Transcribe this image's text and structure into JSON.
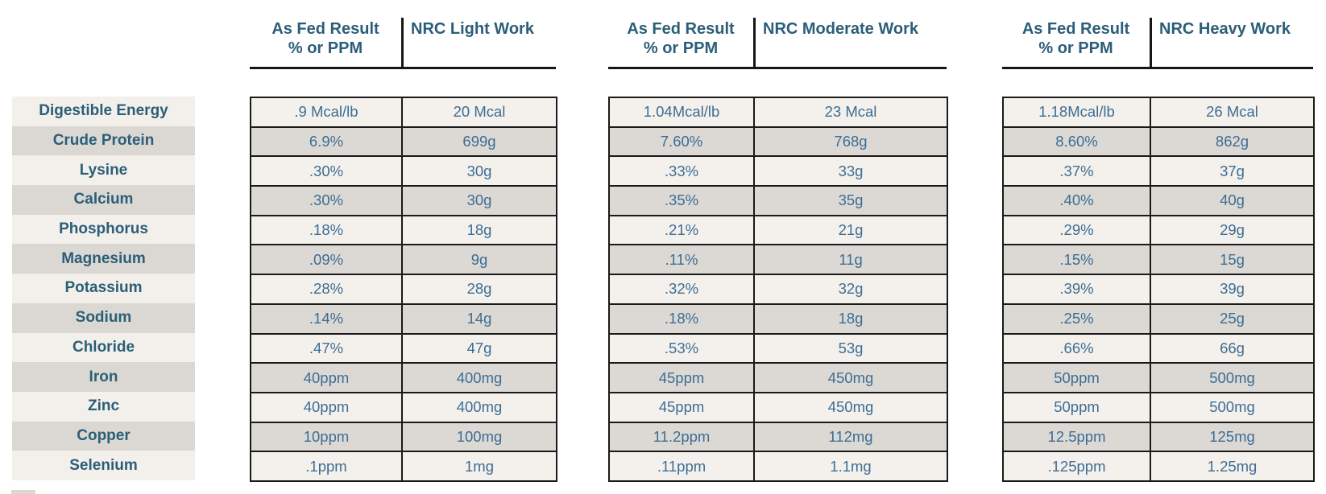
{
  "colors": {
    "heading_text": "#2b5e78",
    "value_text": "#3d6d95",
    "stripe_light": "#f3f0ec",
    "stripe_dark": "#dbd8d3",
    "table_border": "#1a1a1a"
  },
  "row_labels": [
    "Digestible Energy",
    "Crude Protein",
    "Lysine",
    "Calcium",
    "Phosphorus",
    "Magnesium",
    "Potassium",
    "Sodium",
    "Chloride",
    "Iron",
    "Zinc",
    "Copper",
    "Selenium"
  ],
  "groups": [
    {
      "name": "light-work",
      "as_fed_header_line1": "As Fed Result",
      "as_fed_header_line2": "% or PPM",
      "nrc_header": "NRC Light Work",
      "rows": [
        [
          ".9 Mcal/lb",
          "20 Mcal"
        ],
        [
          "6.9%",
          "699g"
        ],
        [
          ".30%",
          "30g"
        ],
        [
          ".30%",
          "30g"
        ],
        [
          ".18%",
          "18g"
        ],
        [
          ".09%",
          "9g"
        ],
        [
          ".28%",
          "28g"
        ],
        [
          ".14%",
          "14g"
        ],
        [
          ".47%",
          "47g"
        ],
        [
          "40ppm",
          "400mg"
        ],
        [
          "40ppm",
          "400mg"
        ],
        [
          "10ppm",
          "100mg"
        ],
        [
          ".1ppm",
          "1mg"
        ]
      ]
    },
    {
      "name": "moderate-work",
      "as_fed_header_line1": "As Fed Result",
      "as_fed_header_line2": "% or PPM",
      "nrc_header": "NRC Moderate Work",
      "rows": [
        [
          "1.04Mcal/lb",
          "23 Mcal"
        ],
        [
          "7.60%",
          "768g"
        ],
        [
          ".33%",
          "33g"
        ],
        [
          ".35%",
          "35g"
        ],
        [
          ".21%",
          "21g"
        ],
        [
          ".11%",
          "11g"
        ],
        [
          ".32%",
          "32g"
        ],
        [
          ".18%",
          "18g"
        ],
        [
          ".53%",
          "53g"
        ],
        [
          "45ppm",
          "450mg"
        ],
        [
          "45ppm",
          "450mg"
        ],
        [
          "11.2ppm",
          "112mg"
        ],
        [
          ".11ppm",
          "1.1mg"
        ]
      ]
    },
    {
      "name": "heavy-work",
      "as_fed_header_line1": "As Fed Result",
      "as_fed_header_line2": "% or PPM",
      "nrc_header": "NRC Heavy Work",
      "rows": [
        [
          "1.18Mcal/lb",
          "26 Mcal"
        ],
        [
          "8.60%",
          "862g"
        ],
        [
          ".37%",
          "37g"
        ],
        [
          ".40%",
          "40g"
        ],
        [
          ".29%",
          "29g"
        ],
        [
          ".15%",
          "15g"
        ],
        [
          ".39%",
          "39g"
        ],
        [
          ".25%",
          "25g"
        ],
        [
          ".66%",
          "66g"
        ],
        [
          "50ppm",
          "500mg"
        ],
        [
          "50ppm",
          "500mg"
        ],
        [
          "12.5ppm",
          "125mg"
        ],
        [
          ".125ppm",
          "1.25mg"
        ]
      ]
    }
  ]
}
